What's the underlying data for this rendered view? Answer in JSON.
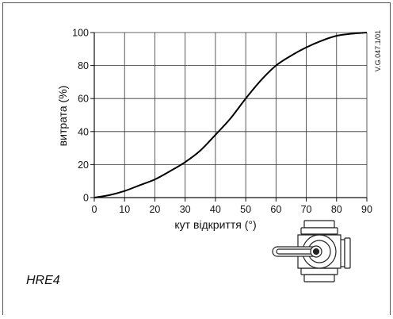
{
  "chart_data": {
    "type": "line",
    "xlabel": "кут відкриття (°)",
    "ylabel": "витрата (%)",
    "xlim": [
      0,
      90
    ],
    "ylim": [
      0,
      100
    ],
    "x_ticks": [
      "0",
      "10",
      "20",
      "30",
      "40",
      "50",
      "60",
      "70",
      "80",
      "90"
    ],
    "y_ticks": [
      "0",
      "20",
      "40",
      "60",
      "80",
      "100"
    ],
    "grid": true,
    "series": [
      {
        "x": [
          0,
          5,
          10,
          15,
          20,
          25,
          30,
          35,
          40,
          45,
          50,
          55,
          60,
          65,
          70,
          75,
          80,
          85,
          90
        ],
        "values": [
          0,
          1.5,
          4,
          7.5,
          11,
          16,
          21.5,
          28.5,
          38,
          48,
          60,
          71,
          80,
          86,
          91,
          95,
          98,
          99.3,
          100
        ],
        "color": "#000000"
      }
    ]
  },
  "drawing_code": "V.G.047.1/01",
  "model_label": "HRE4",
  "icons": {
    "valve": "three-way-mixing-valve-icon"
  }
}
